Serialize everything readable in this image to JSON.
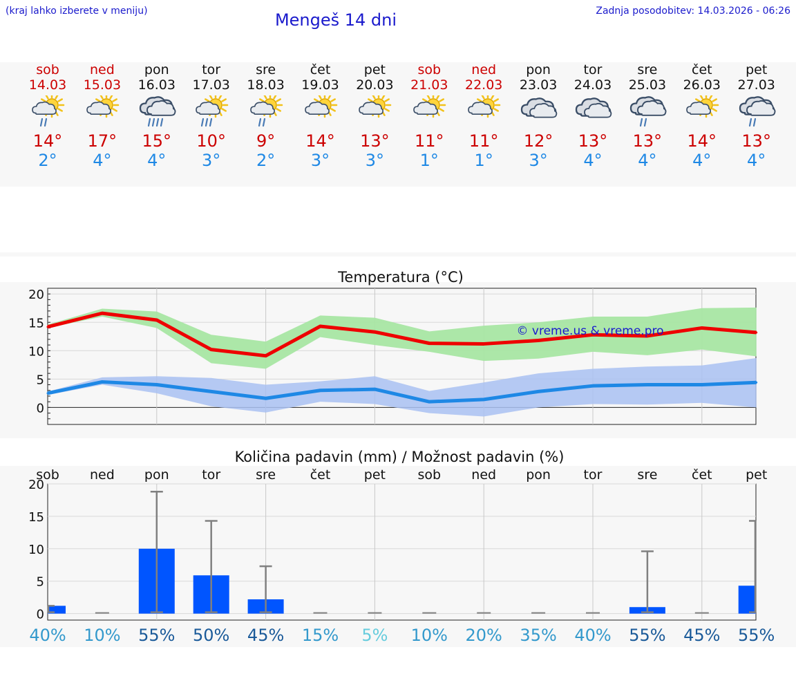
{
  "header": {
    "hint": "(kraj lahko izberete v meniju)",
    "title": "Mengeš 14 dni",
    "updated": "Zadnja posodobitev: 14.03.2026 - 06:26"
  },
  "colors": {
    "title_blue": "#1a1acc",
    "weekend_red": "#cc0000",
    "max_line": "#ee0000",
    "max_band": "#a8e6a3",
    "min_line": "#1e88e5",
    "min_band": "#a9c1f2",
    "rain_bar": "#0055ff",
    "error_bar": "#808080"
  },
  "days": [
    {
      "name": "sob",
      "date": "14.03",
      "weekend": true,
      "icon": "partly-cloudy-sun-light-rain-icon",
      "tmax": "14°",
      "tmin": "2°"
    },
    {
      "name": "ned",
      "date": "15.03",
      "weekend": true,
      "icon": "partly-cloudy-sun-icon",
      "tmax": "17°",
      "tmin": "4°"
    },
    {
      "name": "pon",
      "date": "16.03",
      "weekend": false,
      "icon": "cloud-heavy-rain-icon",
      "tmax": "15°",
      "tmin": "4°"
    },
    {
      "name": "tor",
      "date": "17.03",
      "weekend": false,
      "icon": "partly-cloudy-sun-rain-icon",
      "tmax": "10°",
      "tmin": "3°"
    },
    {
      "name": "sre",
      "date": "18.03",
      "weekend": false,
      "icon": "partly-cloudy-sun-light-rain-icon",
      "tmax": "9°",
      "tmin": "2°"
    },
    {
      "name": "čet",
      "date": "19.03",
      "weekend": false,
      "icon": "partly-cloudy-sun-icon",
      "tmax": "14°",
      "tmin": "3°"
    },
    {
      "name": "pet",
      "date": "20.03",
      "weekend": false,
      "icon": "partly-cloudy-sun-icon",
      "tmax": "13°",
      "tmin": "3°"
    },
    {
      "name": "sob",
      "date": "21.03",
      "weekend": true,
      "icon": "partly-cloudy-sun-icon",
      "tmax": "11°",
      "tmin": "1°"
    },
    {
      "name": "ned",
      "date": "22.03",
      "weekend": true,
      "icon": "partly-cloudy-sun-icon",
      "tmax": "11°",
      "tmin": "1°"
    },
    {
      "name": "pon",
      "date": "23.03",
      "weekend": false,
      "icon": "cloudy-icon",
      "tmax": "12°",
      "tmin": "3°"
    },
    {
      "name": "tor",
      "date": "24.03",
      "weekend": false,
      "icon": "cloudy-icon",
      "tmax": "13°",
      "tmin": "4°"
    },
    {
      "name": "sre",
      "date": "25.03",
      "weekend": false,
      "icon": "cloud-light-rain-icon",
      "tmax": "13°",
      "tmin": "4°"
    },
    {
      "name": "čet",
      "date": "26.03",
      "weekend": false,
      "icon": "partly-cloudy-sun-icon",
      "tmax": "14°",
      "tmin": "4°"
    },
    {
      "name": "pet",
      "date": "27.03",
      "weekend": false,
      "icon": "cloud-light-rain-icon",
      "tmax": "13°",
      "tmin": "4°"
    }
  ],
  "chart_data": [
    {
      "type": "line",
      "title": "Temperatura (°C)",
      "watermark": "© vreme.us & vreme.pro",
      "ylim": [
        -3,
        21
      ],
      "yticks": [
        0,
        5,
        10,
        15,
        20
      ],
      "grid": true,
      "categories": [
        "14.03",
        "15.03",
        "16.03",
        "17.03",
        "18.03",
        "19.03",
        "20.03",
        "21.03",
        "22.03",
        "23.03",
        "24.03",
        "25.03",
        "26.03",
        "27.03"
      ],
      "series": [
        {
          "name": "max",
          "values": [
            14.2,
            16.6,
            15.4,
            10.2,
            9.1,
            14.3,
            13.3,
            11.3,
            11.2,
            11.8,
            12.8,
            12.6,
            14.0,
            13.2
          ],
          "band_low": [
            14.0,
            16.0,
            14.0,
            7.8,
            6.8,
            12.4,
            11.0,
            9.8,
            8.2,
            8.6,
            9.8,
            9.2,
            10.2,
            9.0
          ],
          "band_high": [
            14.6,
            17.4,
            16.9,
            12.8,
            11.6,
            16.2,
            15.8,
            13.4,
            14.4,
            15.0,
            16.0,
            16.0,
            17.5,
            17.6
          ]
        },
        {
          "name": "min",
          "values": [
            2.5,
            4.5,
            4.0,
            2.8,
            1.6,
            3.0,
            3.2,
            1.0,
            1.4,
            2.8,
            3.8,
            4.0,
            4.0,
            4.4
          ],
          "band_low": [
            2.2,
            4.0,
            2.5,
            0.2,
            -0.9,
            1.0,
            0.6,
            -1.0,
            -1.6,
            0.0,
            0.6,
            0.5,
            0.8,
            0.0
          ],
          "band_high": [
            2.8,
            5.3,
            5.5,
            5.2,
            4.0,
            4.6,
            5.5,
            2.9,
            4.4,
            6.0,
            6.8,
            7.2,
            7.4,
            8.7
          ]
        }
      ]
    },
    {
      "type": "bar",
      "title": "Količina padavin (mm) / Možnost padavin (%)",
      "ylim": [
        -1,
        20
      ],
      "yticks": [
        0,
        5,
        10,
        15,
        20
      ],
      "grid": true,
      "categories": [
        "sob",
        "ned",
        "pon",
        "tor",
        "sre",
        "čet",
        "pet",
        "sob",
        "ned",
        "pon",
        "tor",
        "sre",
        "čet",
        "pet"
      ],
      "values": [
        1.2,
        0,
        10.0,
        5.9,
        2.2,
        0,
        0,
        0,
        0,
        0,
        0,
        1.0,
        0,
        4.3
      ],
      "error_high": [
        1.2,
        0,
        18.8,
        14.3,
        7.3,
        0,
        0,
        0,
        0,
        0,
        0,
        9.6,
        0,
        14.3
      ],
      "chance": [
        "40%",
        "10%",
        "55%",
        "50%",
        "45%",
        "15%",
        "5%",
        "10%",
        "20%",
        "35%",
        "40%",
        "55%",
        "45%",
        "55%"
      ],
      "chance_colors": [
        "#3399cc",
        "#3399cc",
        "#1a5a99",
        "#1a5a99",
        "#1a5a99",
        "#3399cc",
        "#66ccdd",
        "#3399cc",
        "#3399cc",
        "#3399cc",
        "#3399cc",
        "#1a5a99",
        "#1a5a99",
        "#1a5a99"
      ]
    }
  ]
}
